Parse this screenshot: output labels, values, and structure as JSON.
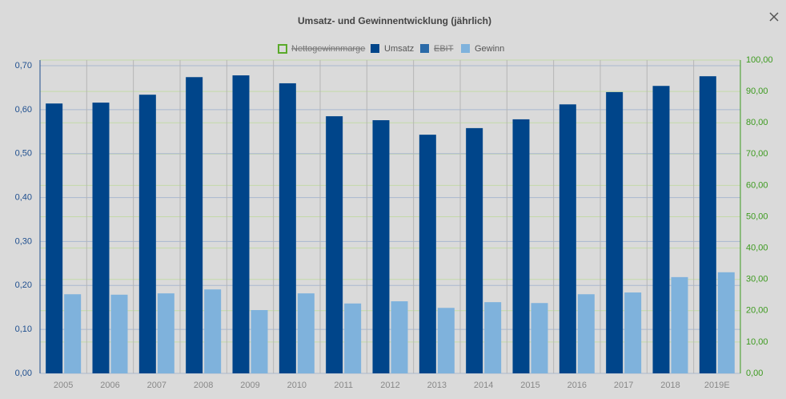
{
  "chart_data": {
    "type": "bar",
    "title": "Umsatz- und Gewinnentwicklung (jährlich)",
    "categories": [
      "2005",
      "2006",
      "2007",
      "2008",
      "2009",
      "2010",
      "2011",
      "2012",
      "2013",
      "2014",
      "2015",
      "2016",
      "2017",
      "2018",
      "2019E"
    ],
    "series": [
      {
        "name": "Nettogewinnmarge",
        "color": "#5aaa2a",
        "visible": false,
        "values": [
          null,
          null,
          null,
          null,
          null,
          null,
          null,
          null,
          null,
          null,
          null,
          null,
          null,
          null,
          null
        ]
      },
      {
        "name": "Umsatz",
        "color": "#00458a",
        "visible": true,
        "values": [
          0.614,
          0.616,
          0.634,
          0.674,
          0.678,
          0.66,
          0.585,
          0.576,
          0.543,
          0.558,
          0.578,
          0.612,
          0.64,
          0.654,
          0.676
        ]
      },
      {
        "name": "EBIT",
        "color": "#2a6aa8",
        "visible": false,
        "values": [
          null,
          null,
          null,
          null,
          null,
          null,
          null,
          null,
          null,
          null,
          null,
          null,
          null,
          null,
          null
        ]
      },
      {
        "name": "Gewinn",
        "color": "#7fb2dc",
        "visible": true,
        "values": [
          0.18,
          0.179,
          0.182,
          0.191,
          0.144,
          0.182,
          0.159,
          0.164,
          0.149,
          0.162,
          0.16,
          0.18,
          0.184,
          0.219,
          0.23
        ]
      }
    ],
    "ylim": [
      0,
      0.7
    ],
    "yticks": [
      {
        "value": 0,
        "label": "0,00"
      },
      {
        "value": 0.1,
        "label": "0,10"
      },
      {
        "value": 0.2,
        "label": "0,20"
      },
      {
        "value": 0.3,
        "label": "0,30"
      },
      {
        "value": 0.4,
        "label": "0,40"
      },
      {
        "value": 0.5,
        "label": "0,50"
      },
      {
        "value": 0.6,
        "label": "0,60"
      },
      {
        "value": 0.7,
        "label": "0,70"
      }
    ],
    "y2lim": [
      0,
      100
    ],
    "y2ticks": [
      {
        "value": 0,
        "label": "0,00"
      },
      {
        "value": 10,
        "label": "10,00"
      },
      {
        "value": 20,
        "label": "20,00"
      },
      {
        "value": 30,
        "label": "30,00"
      },
      {
        "value": 40,
        "label": "40,00"
      },
      {
        "value": 50,
        "label": "50,00"
      },
      {
        "value": 60,
        "label": "60,00"
      },
      {
        "value": 70,
        "label": "70,00"
      },
      {
        "value": 80,
        "label": "80,00"
      },
      {
        "value": 90,
        "label": "90,00"
      },
      {
        "value": 100,
        "label": "100,00"
      }
    ],
    "grid": true,
    "legend": "top"
  }
}
